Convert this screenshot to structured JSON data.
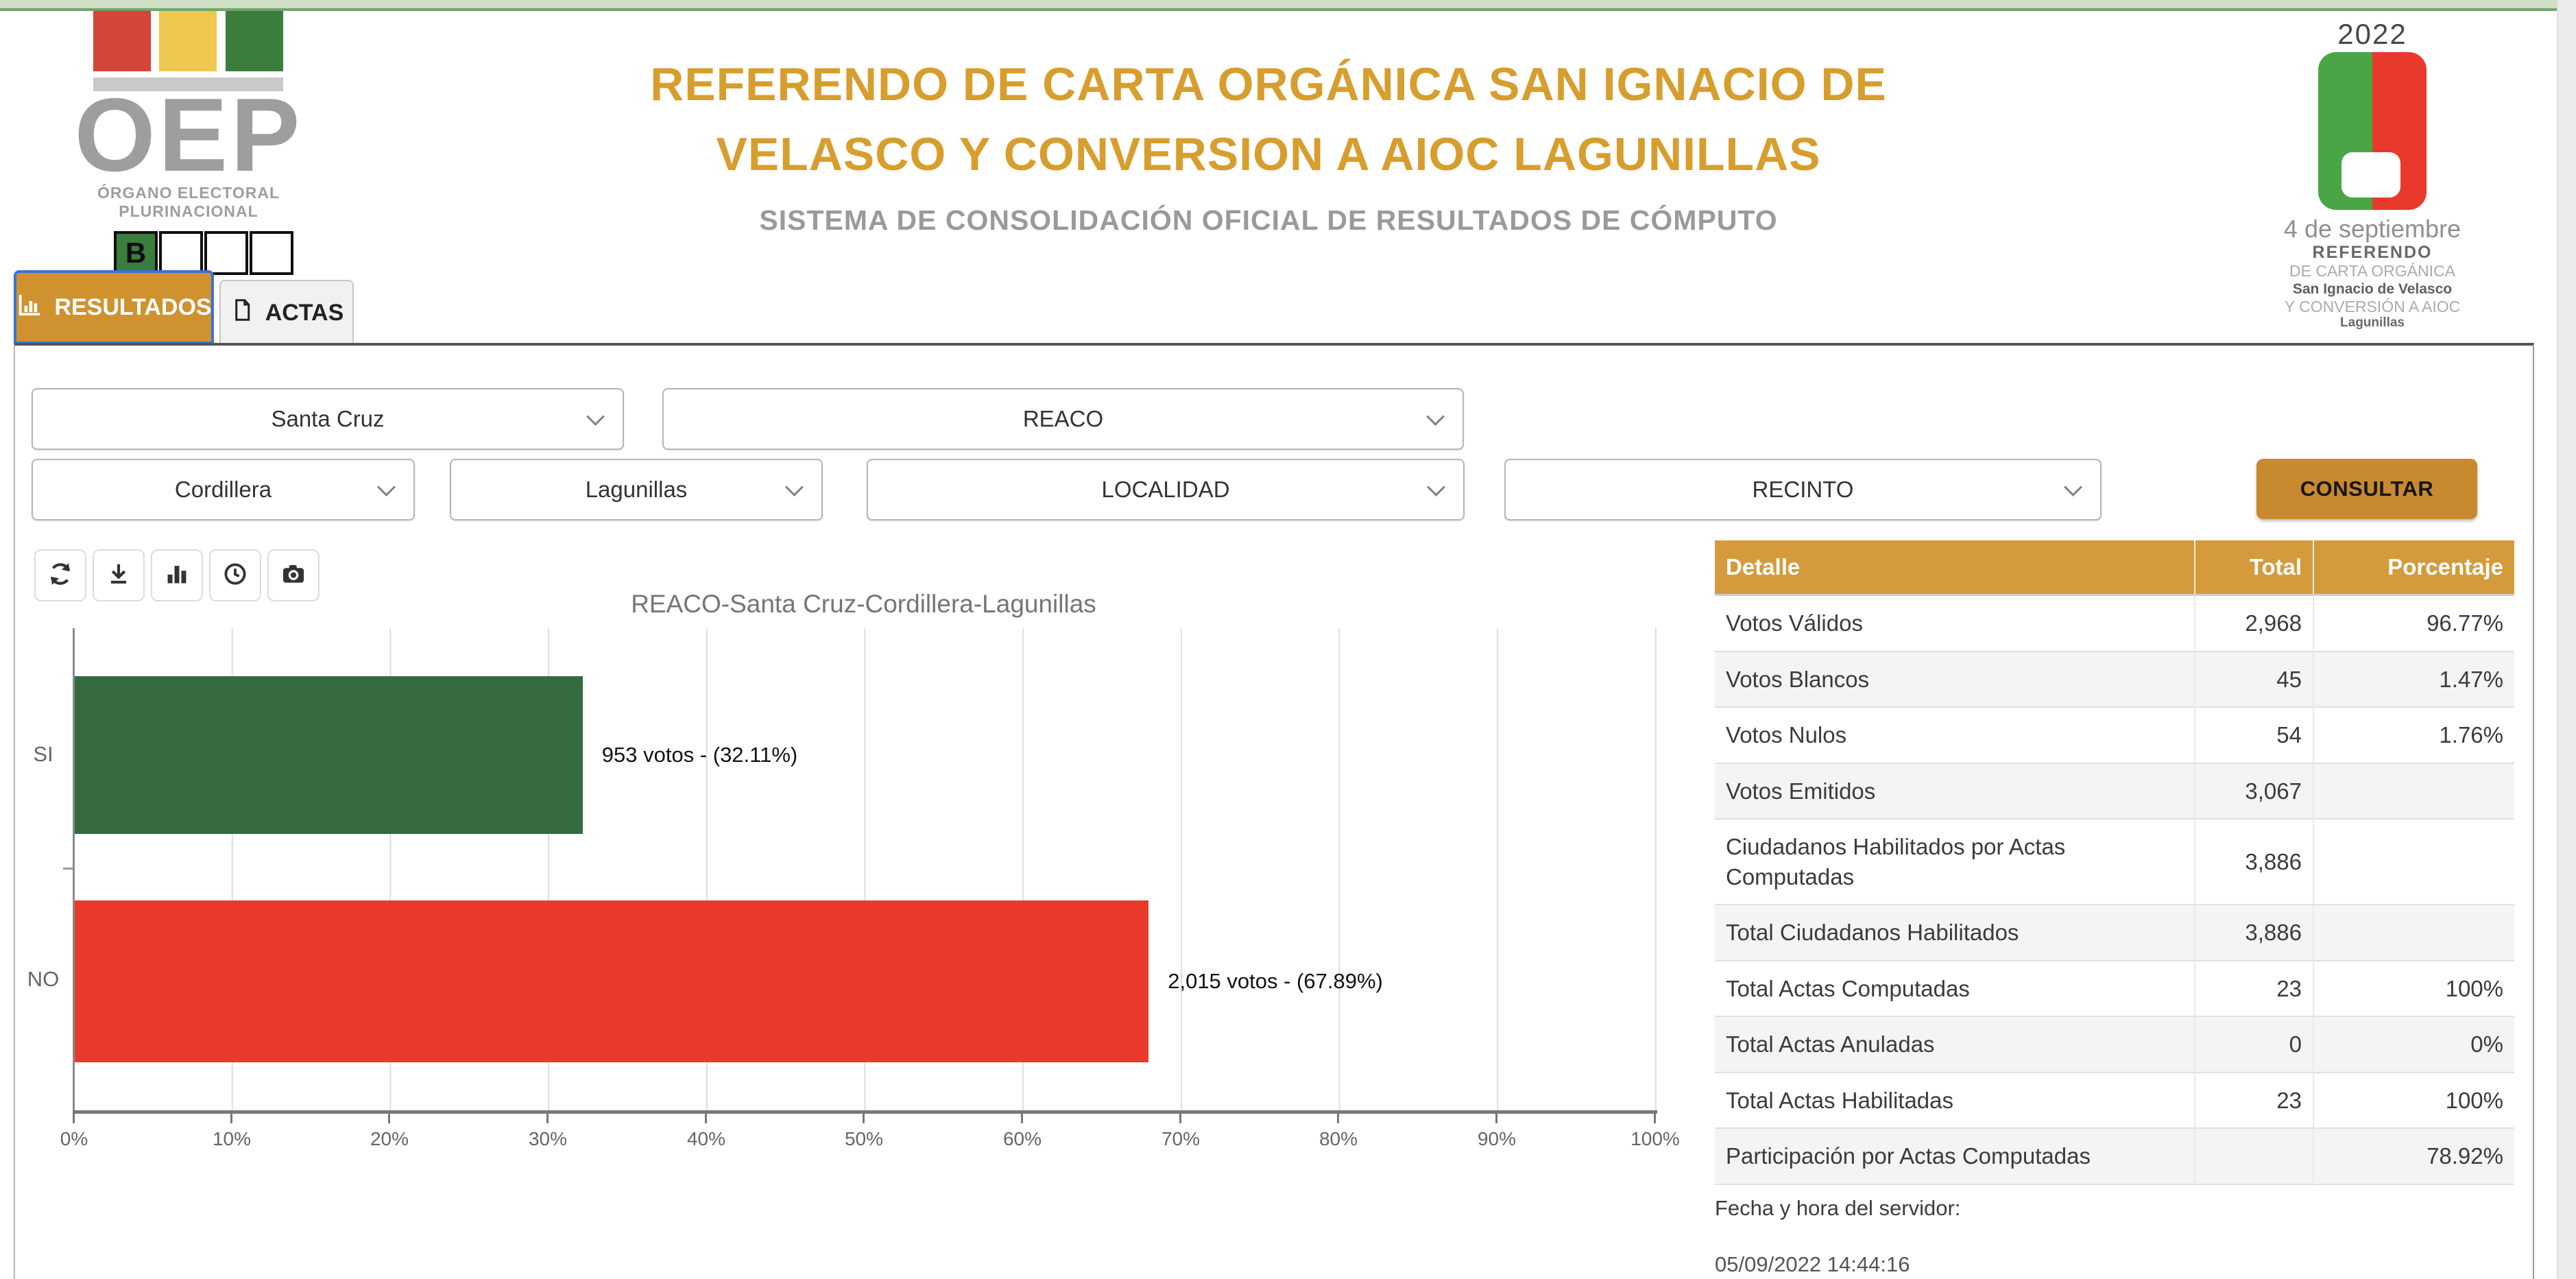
{
  "header": {
    "oep": {
      "name": "OEP",
      "caption": "ÓRGANO ELECTORAL PLURINACIONAL",
      "b_label": "B"
    },
    "title_line1": "REFERENDO DE CARTA ORGÁNICA SAN IGNACIO DE",
    "title_line2": "VELASCO Y CONVERSION A AIOC LAGUNILLAS",
    "subtitle": "SISTEMA DE CONSOLIDACIÓN OFICIAL DE RESULTADOS DE CÓMPUTO",
    "event": {
      "year": "2022",
      "date": "4 de septiembre",
      "line1": "REFERENDO",
      "line2": "DE CARTA ORGÁNICA",
      "line3": "San Ignacio de Velasco",
      "line4": "Y CONVERSIÓN A AIOC",
      "line5": "Lagunillas"
    }
  },
  "tabs": [
    {
      "label": "RESULTADOS",
      "active": true,
      "icon": "bar-chart-icon"
    },
    {
      "label": "ACTAS",
      "active": false,
      "icon": "document-icon"
    }
  ],
  "filters": {
    "selects": [
      {
        "value": "Santa Cruz"
      },
      {
        "value": "REACO"
      },
      {
        "value": "Cordillera"
      },
      {
        "value": "Lagunillas"
      },
      {
        "value": "LOCALIDAD"
      },
      {
        "value": "RECINTO"
      }
    ],
    "submit_label": "CONSULTAR"
  },
  "toolbar_icons": [
    "refresh",
    "download",
    "bar-chart",
    "clock",
    "camera"
  ],
  "chart_data": {
    "type": "bar",
    "orientation": "horizontal",
    "title": "REACO-Santa Cruz-Cordillera-Lagunillas",
    "categories": [
      "SI",
      "NO"
    ],
    "values": [
      32.11,
      67.89
    ],
    "votes": [
      953,
      2015
    ],
    "labels": [
      "953 votos - (32.11%)",
      "2,015 votos - (67.89%)"
    ],
    "colors": [
      "#346b41",
      "#e8392c"
    ],
    "xlim": [
      0,
      100
    ],
    "x_ticks": [
      "0%",
      "10%",
      "20%",
      "30%",
      "40%",
      "50%",
      "60%",
      "70%",
      "80%",
      "90%",
      "100%"
    ],
    "grid": true,
    "legend": false
  },
  "table": {
    "headers": [
      "Detalle",
      "Total",
      "Porcentaje"
    ],
    "rows": [
      [
        "Votos Válidos",
        "2,968",
        "96.77%"
      ],
      [
        "Votos Blancos",
        "45",
        "1.47%"
      ],
      [
        "Votos Nulos",
        "54",
        "1.76%"
      ],
      [
        "Votos Emitidos",
        "3,067",
        ""
      ],
      [
        "Ciudadanos Habilitados por Actas Computadas",
        "3,886",
        ""
      ],
      [
        "Total Ciudadanos Habilitados",
        "3,886",
        ""
      ],
      [
        "Total Actas Computadas",
        "23",
        "100%"
      ],
      [
        "Total Actas Anuladas",
        "0",
        "0%"
      ],
      [
        "Total Actas Habilitadas",
        "23",
        "100%"
      ],
      [
        "Participación por Actas Computadas",
        "",
        "78.92%"
      ]
    ]
  },
  "footer": {
    "server_time_label": "Fecha y hora del servidor:",
    "server_time": "05/09/2022 14:44:16"
  },
  "colors": {
    "accent_gold": "#d79e2e",
    "table_header_gold": "#d49a3b",
    "tab_active_gold": "#d0912f",
    "button_gold": "#c8892f",
    "bar_green": "#346b41",
    "bar_red": "#e8392c",
    "logo_green": "#4aa546",
    "logo_red": "#e8392c",
    "top_strip_green": "#cfe0c6"
  }
}
